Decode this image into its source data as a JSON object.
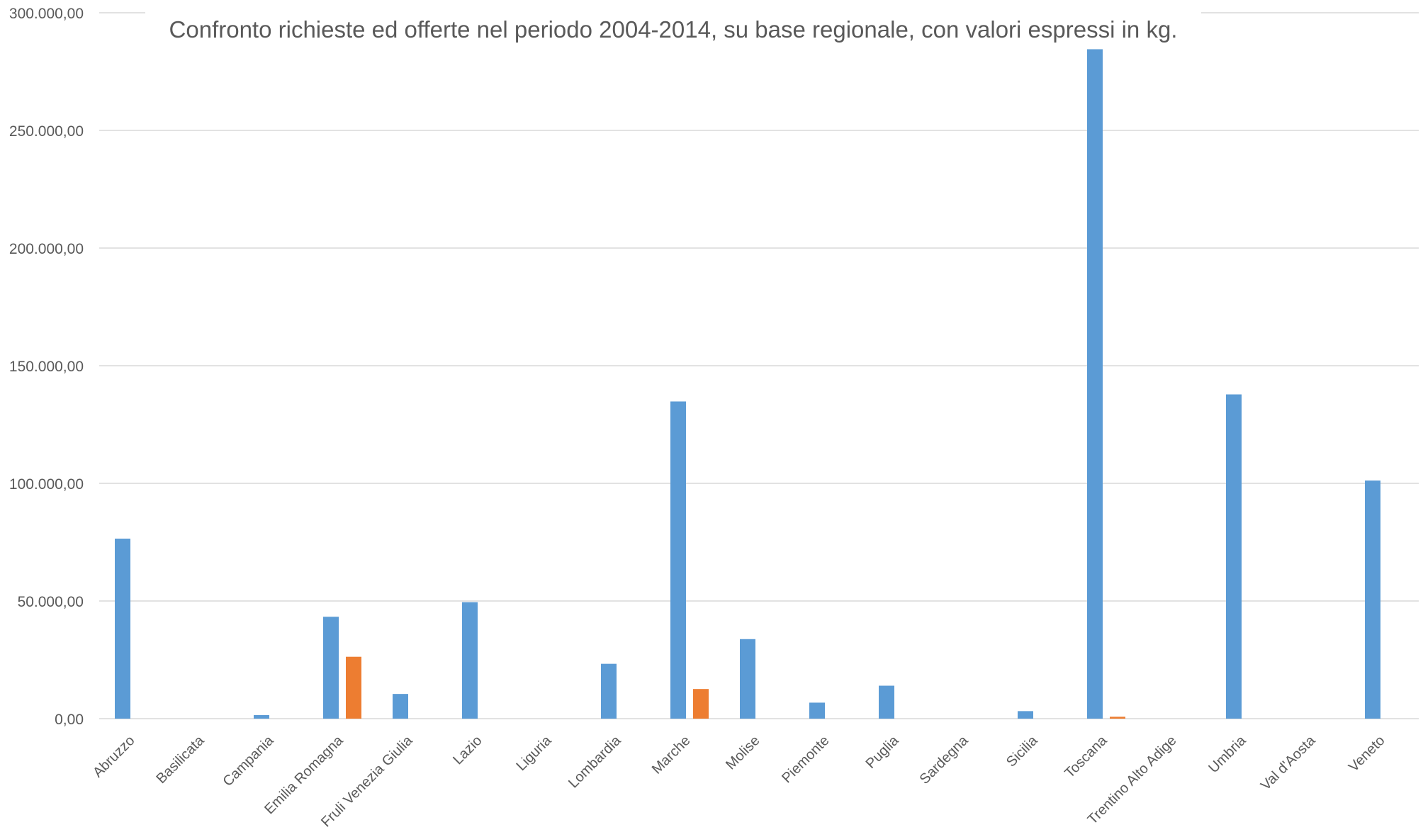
{
  "chart_data": {
    "type": "bar",
    "title": "Confronto richieste ed offerte nel periodo 2004-2014, su base regionale, con valori espressi in kg.",
    "xlabel": "",
    "ylabel": "",
    "ylim": [
      0,
      300000
    ],
    "yticks": [
      {
        "value": 0,
        "label": "0,00"
      },
      {
        "value": 50000,
        "label": "50.000,00"
      },
      {
        "value": 100000,
        "label": "100.000,00"
      },
      {
        "value": 150000,
        "label": "150.000,00"
      },
      {
        "value": 200000,
        "label": "200.000,00"
      },
      {
        "value": 250000,
        "label": "250.000,00"
      },
      {
        "value": 300000,
        "label": "300.000,00"
      }
    ],
    "grid": true,
    "legend": "none",
    "categories": [
      "Abruzzo",
      "Basilicata",
      "Campania",
      "Emilia Romagna",
      "Fruli Venezia Giulia",
      "Lazio",
      "Liguria",
      "Lombardia",
      "Marche",
      "Molise",
      "Piemonte",
      "Puglia",
      "Sardegna",
      "Sicilia",
      "Toscana",
      "Trentino Alto Adige",
      "Umbria",
      "Val d'Aosta",
      "Veneto"
    ],
    "series": [
      {
        "color": "#5B9BD5",
        "values": [
          76500,
          0,
          1500,
          43300,
          10500,
          49500,
          0,
          23300,
          134800,
          33800,
          6800,
          14000,
          0,
          3200,
          284500,
          0,
          137800,
          0,
          101200
        ]
      },
      {
        "color": "#ED7D31",
        "values": [
          0,
          0,
          0,
          26300,
          0,
          0,
          0,
          0,
          12600,
          0,
          0,
          0,
          0,
          0,
          800,
          0,
          0,
          0,
          0
        ]
      }
    ]
  }
}
